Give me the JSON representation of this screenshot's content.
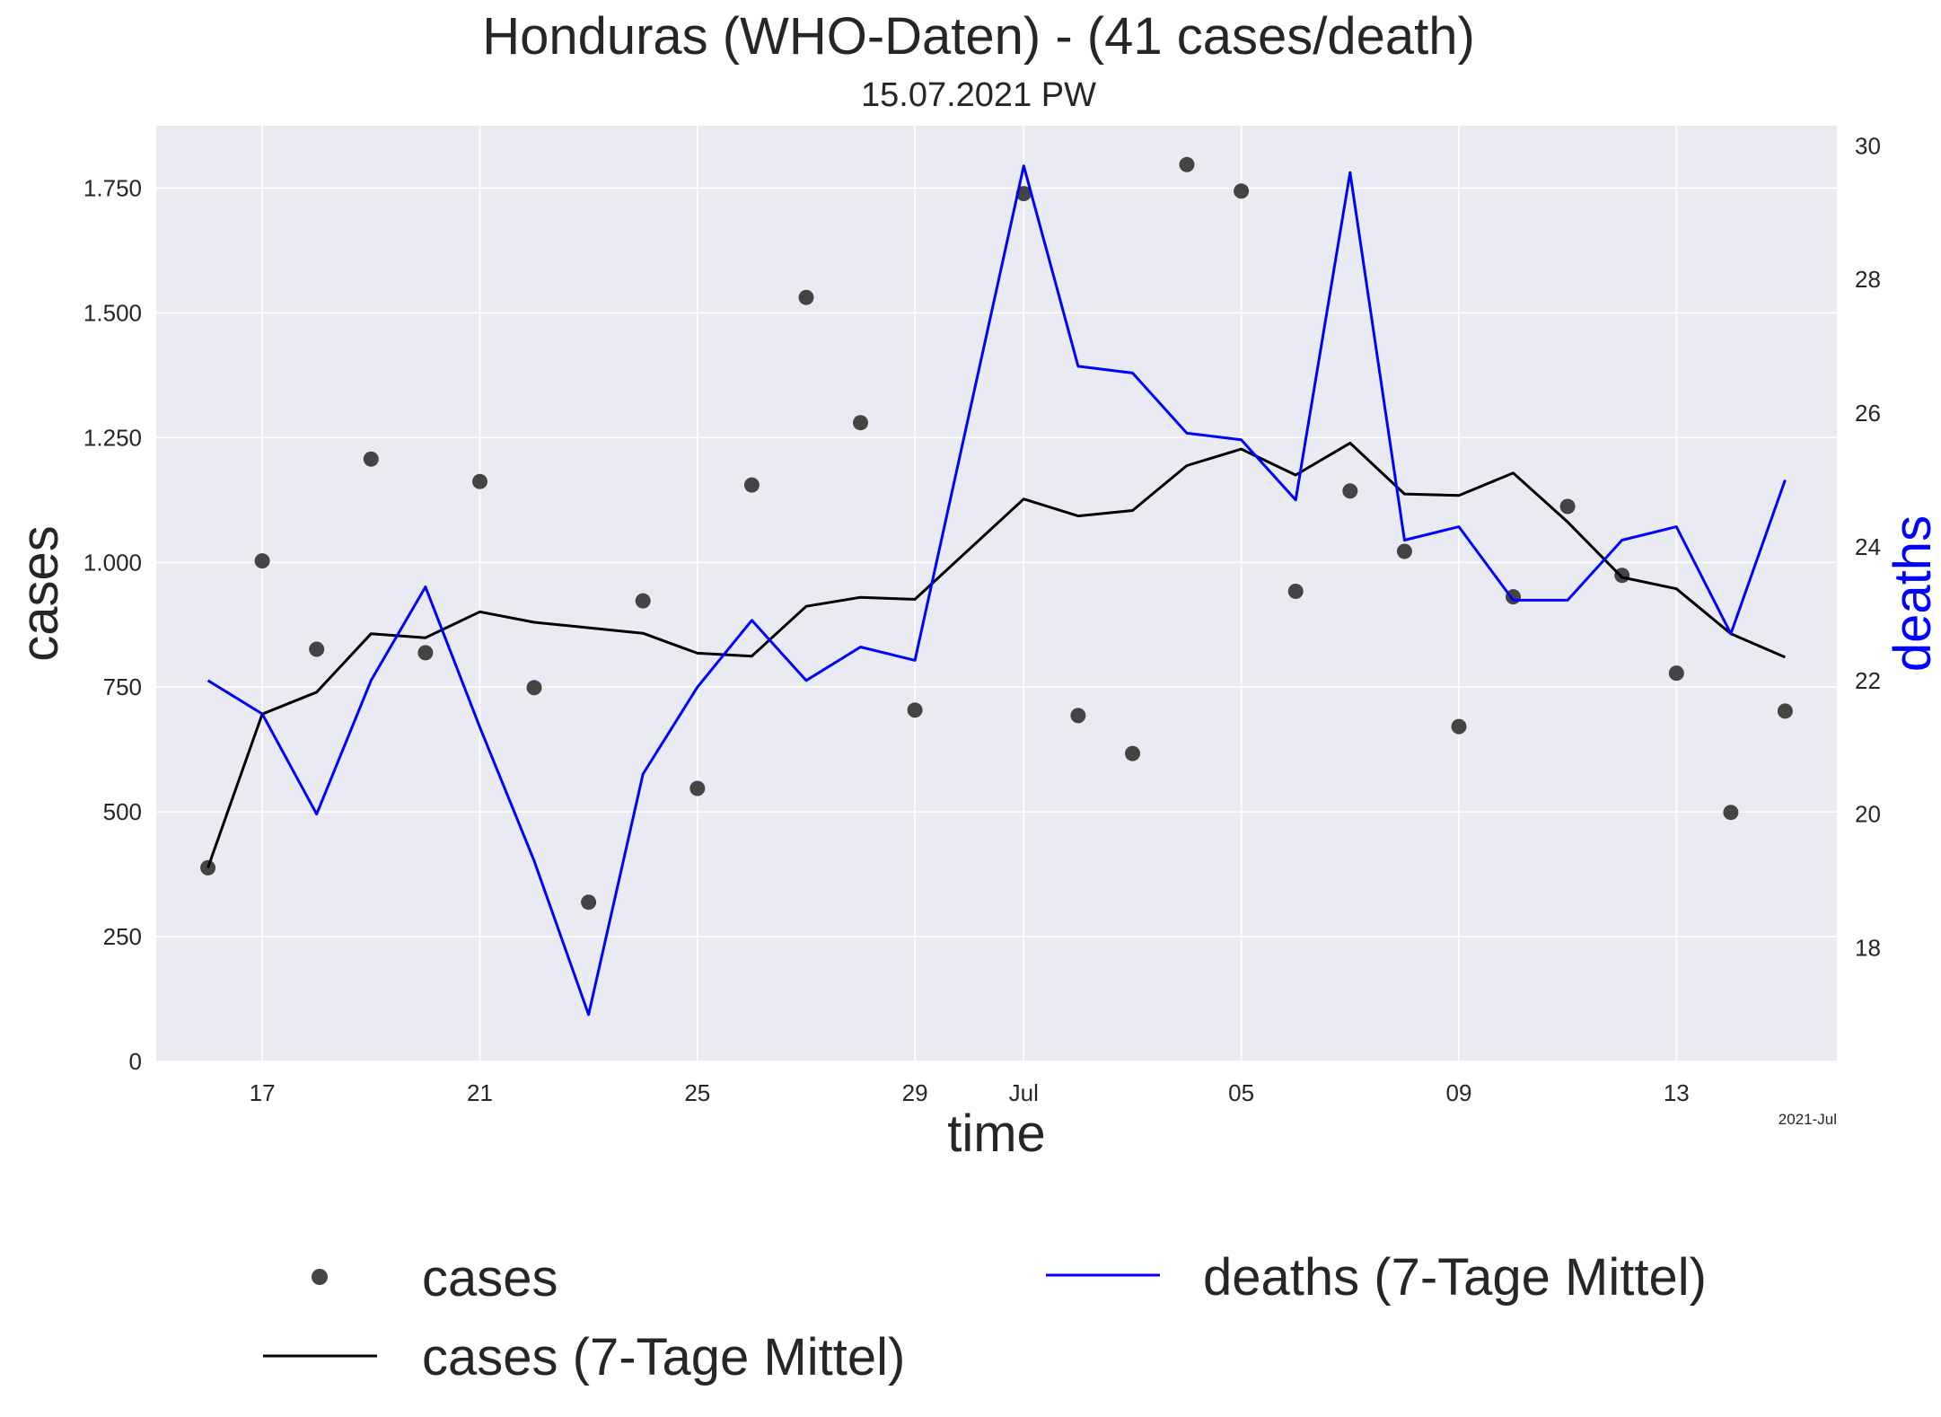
{
  "chart_data": {
    "type": "line",
    "title": "Honduras (WHO-Daten) - (41 cases/death)",
    "subtitle": "15.07.2021 PW",
    "xlabel": "time",
    "ylabel_left": "cases",
    "ylabel_right": "deaths",
    "x_offset_label": "2021-Jul",
    "x_start_label": "2021-06-16",
    "x": [
      "2021-06-16",
      "2021-06-17",
      "2021-06-18",
      "2021-06-19",
      "2021-06-20",
      "2021-06-21",
      "2021-06-22",
      "2021-06-23",
      "2021-06-24",
      "2021-06-25",
      "2021-06-26",
      "2021-06-27",
      "2021-06-28",
      "2021-06-29",
      "2021-06-30",
      "2021-07-01",
      "2021-07-02",
      "2021-07-03",
      "2021-07-04",
      "2021-07-05",
      "2021-07-06",
      "2021-07-07",
      "2021-07-08",
      "2021-07-09",
      "2021-07-10",
      "2021-07-11",
      "2021-07-12",
      "2021-07-13",
      "2021-07-14",
      "2021-07-15"
    ],
    "x_ticks": [
      {
        "index": 1,
        "label": "17"
      },
      {
        "index": 5,
        "label": "21"
      },
      {
        "index": 9,
        "label": "25"
      },
      {
        "index": 13,
        "label": "29"
      },
      {
        "index": 15,
        "label": "Jul"
      },
      {
        "index": 19,
        "label": "05"
      },
      {
        "index": 23,
        "label": "09"
      },
      {
        "index": 27,
        "label": "13"
      }
    ],
    "ylim_left": [
      0,
      1875
    ],
    "yticks_left": [
      {
        "value": 0,
        "label": "0"
      },
      {
        "value": 250,
        "label": "250"
      },
      {
        "value": 500,
        "label": "500"
      },
      {
        "value": 750,
        "label": "750"
      },
      {
        "value": 1000,
        "label": "1.000"
      },
      {
        "value": 1250,
        "label": "1.250"
      },
      {
        "value": 1500,
        "label": "1.500"
      },
      {
        "value": 1750,
        "label": "1.750"
      }
    ],
    "ylim_right": [
      16.3,
      30.3
    ],
    "yticks_right": [
      {
        "value": 18,
        "label": "18"
      },
      {
        "value": 20,
        "label": "20"
      },
      {
        "value": 22,
        "label": "22"
      },
      {
        "value": 24,
        "label": "24"
      },
      {
        "value": 26,
        "label": "26"
      },
      {
        "value": 28,
        "label": "28"
      },
      {
        "value": 30,
        "label": "30"
      }
    ],
    "grid": true,
    "legend_position": "bottom",
    "series": [
      {
        "name": "cases",
        "kind": "scatter",
        "axis": "left",
        "color": "#444444",
        "values": [
          388,
          1003,
          826,
          1207,
          819,
          1162,
          749,
          319,
          923,
          547,
          1155,
          1531,
          1280,
          704,
          null,
          1739,
          693,
          617,
          1797,
          1744,
          942,
          1143,
          1022,
          671,
          931,
          1112,
          974,
          778,
          499,
          702
        ]
      },
      {
        "name": "cases (7-Tage Mittel)",
        "kind": "line",
        "axis": "left",
        "color": "#000000",
        "values": [
          388,
          696,
          740,
          857,
          849,
          901,
          880,
          869,
          858,
          818,
          812,
          912,
          930,
          926,
          null,
          1127,
          1093,
          1104,
          1194,
          1227,
          1175,
          1239,
          1137,
          1134,
          1179,
          1081,
          970,
          947,
          857,
          810
        ]
      },
      {
        "name": "deaths (7-Tage Mittel)",
        "kind": "line",
        "axis": "right",
        "color": "#0000ff",
        "values": [
          22.0,
          21.5,
          20.0,
          22.0,
          23.4,
          21.3,
          19.3,
          17.0,
          20.6,
          21.9,
          22.9,
          22.0,
          22.5,
          22.3,
          null,
          29.7,
          26.7,
          26.6,
          25.7,
          25.6,
          24.7,
          29.6,
          24.1,
          24.3,
          23.2,
          23.2,
          24.1,
          24.3,
          22.7,
          25.0
        ]
      }
    ]
  }
}
